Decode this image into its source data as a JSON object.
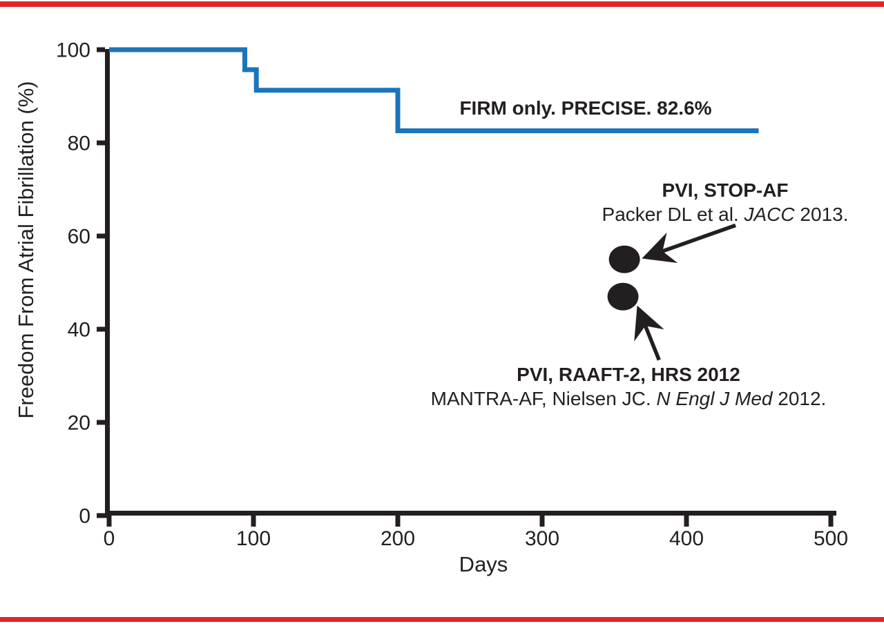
{
  "page": {
    "background": "#FFFFFF",
    "border_color": "#E3242B",
    "text_color": "#231F20"
  },
  "chart_data": {
    "type": "line",
    "subtype": "kaplan-meier-step-curve-with-scatter",
    "title": "",
    "xlabel": "Days",
    "ylabel": "Freedom From Atrial Fibrillation (%)",
    "xlim": [
      0,
      500
    ],
    "ylim": [
      0,
      100
    ],
    "x_ticks": [
      0,
      100,
      200,
      300,
      400,
      500
    ],
    "y_ticks": [
      100,
      80,
      60,
      40,
      20,
      0
    ],
    "grid": false,
    "legend_position": "none",
    "axis_color": "#231F20",
    "series": [
      {
        "name": "FIRM only (PRECISE)",
        "type": "step",
        "color": "#1B75BB",
        "final_value_pct": 82.6,
        "points": [
          [
            0,
            100
          ],
          [
            94,
            100
          ],
          [
            94,
            95.7
          ],
          [
            102,
            95.7
          ],
          [
            102,
            91.3
          ],
          [
            200,
            91.3
          ],
          [
            200,
            82.6
          ],
          [
            450,
            82.6
          ]
        ]
      }
    ],
    "scatter": [
      {
        "name": "PVI STOP-AF point",
        "x": 357,
        "y": 55,
        "color": "#231F20"
      },
      {
        "name": "PVI RAAFT-2 / MANTRA-AF point",
        "x": 356,
        "y": 47,
        "color": "#231F20"
      }
    ],
    "arrows": [
      {
        "name": "arrow-to-stop-af-point",
        "from": [
          434,
          62.3
        ],
        "to": [
          372,
          55.5
        ],
        "color": "#231F20"
      },
      {
        "name": "arrow-to-raaft-point",
        "from": [
          381,
          33.4
        ],
        "to": [
          367,
          44.2
        ],
        "color": "#231F20"
      }
    ],
    "annotations": {
      "series_label": "FIRM only. PRECISE. 82.6%",
      "stop_af": {
        "line1": "PVI, STOP-AF",
        "line2_prefix": "Packer DL et al. ",
        "line2_italic": "JACC",
        "line2_suffix": " 2013."
      },
      "raaft": {
        "line1": "PVI, RAAFT-2, HRS 2012",
        "line2_prefix": "MANTRA-AF, Nielsen JC. ",
        "line2_italic": "N Engl J Med",
        "line2_suffix": " 2012."
      }
    }
  }
}
